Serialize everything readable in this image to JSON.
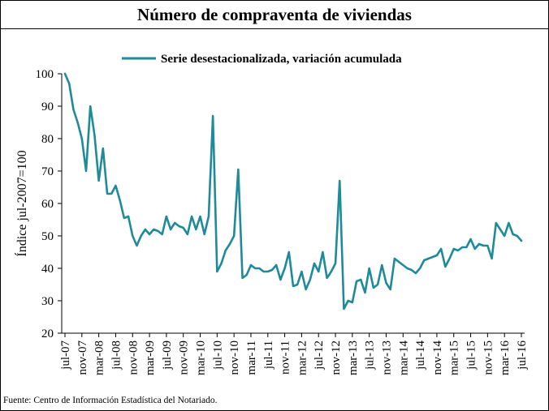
{
  "title": "Número de compraventa de viviendas",
  "source": "Fuente: Centro de Información Estadística del Notariado.",
  "colors": {
    "line": "#1f8a9a",
    "axis": "#000000",
    "text": "#000000"
  },
  "chart_data": {
    "type": "line",
    "title": "Número de compraventa de viviendas",
    "ylabel": "Índice jul-2007=100",
    "xlabel": "",
    "ylim": [
      20,
      100
    ],
    "yticks": [
      20,
      30,
      40,
      50,
      60,
      70,
      80,
      90,
      100
    ],
    "grid": false,
    "legend": "top-center",
    "x_tick_labels": [
      "jul-07",
      "nov-07",
      "mar-08",
      "jul-08",
      "nov-08",
      "mar-09",
      "jul-09",
      "nov-09",
      "mar-10",
      "jul-10",
      "nov-10",
      "mar-11",
      "jul-11",
      "nov-11",
      "mar-12",
      "jul-12",
      "nov-12",
      "mar-13",
      "jul-13",
      "nov-13",
      "mar-14",
      "jul-14",
      "nov-14",
      "mar-15",
      "jul-15",
      "nov-15",
      "mar-16",
      "jul-16"
    ],
    "series": [
      {
        "name": "Serie desestacionalizada, variación acumulada",
        "x": [
          "jul-07",
          "ago-07",
          "sep-07",
          "oct-07",
          "nov-07",
          "dic-07",
          "ene-08",
          "feb-08",
          "mar-08",
          "abr-08",
          "may-08",
          "jun-08",
          "jul-08",
          "ago-08",
          "sep-08",
          "oct-08",
          "nov-08",
          "dic-08",
          "ene-09",
          "feb-09",
          "mar-09",
          "abr-09",
          "may-09",
          "jun-09",
          "jul-09",
          "ago-09",
          "sep-09",
          "oct-09",
          "nov-09",
          "dic-09",
          "ene-10",
          "feb-10",
          "mar-10",
          "abr-10",
          "may-10",
          "jun-10",
          "jul-10",
          "ago-10",
          "sep-10",
          "oct-10",
          "nov-10",
          "dic-10",
          "ene-11",
          "feb-11",
          "mar-11",
          "abr-11",
          "may-11",
          "jun-11",
          "jul-11",
          "ago-11",
          "sep-11",
          "oct-11",
          "nov-11",
          "dic-11",
          "ene-12",
          "feb-12",
          "mar-12",
          "abr-12",
          "may-12",
          "jun-12",
          "jul-12",
          "ago-12",
          "sep-12",
          "oct-12",
          "nov-12",
          "dic-12",
          "ene-13",
          "feb-13",
          "mar-13",
          "abr-13",
          "may-13",
          "jun-13",
          "jul-13",
          "ago-13",
          "sep-13",
          "oct-13",
          "nov-13",
          "dic-13",
          "ene-14",
          "feb-14",
          "mar-14",
          "abr-14",
          "may-14",
          "jun-14",
          "jul-14",
          "ago-14",
          "sep-14",
          "oct-14",
          "nov-14",
          "dic-14",
          "ene-15",
          "feb-15",
          "mar-15",
          "abr-15",
          "may-15",
          "jun-15",
          "jul-15",
          "ago-15",
          "sep-15",
          "oct-15",
          "nov-15",
          "dic-15",
          "ene-16",
          "feb-16",
          "mar-16",
          "abr-16",
          "may-16",
          "jun-16",
          "jul-16"
        ],
        "values": [
          100,
          97,
          89,
          85,
          80,
          70,
          90,
          81,
          67,
          77,
          63,
          63,
          65.5,
          61,
          55.5,
          56,
          50,
          47,
          50,
          52,
          50.5,
          52,
          51.5,
          50.5,
          56,
          52,
          54,
          53,
          52.5,
          50.5,
          56,
          52,
          56,
          50.5,
          56,
          87,
          39,
          41.5,
          45.5,
          47.5,
          50,
          70.5,
          37,
          38,
          41,
          40,
          40,
          39,
          39,
          39.5,
          41,
          36.5,
          40,
          45,
          34.5,
          35,
          39,
          33.5,
          36.5,
          41.5,
          39,
          45,
          37,
          39,
          41.5,
          67,
          27.5,
          30,
          29.5,
          36,
          36.5,
          32.5,
          40,
          34,
          35,
          41,
          35.5,
          33.5,
          43,
          42,
          41,
          40,
          39.5,
          38.5,
          40,
          42.5,
          43,
          43.5,
          44,
          46,
          40.5,
          43,
          46,
          45.5,
          46.5,
          46.5,
          49,
          46,
          47.5,
          47,
          47,
          43,
          54,
          52,
          50,
          54,
          50.5,
          50,
          48.5
        ]
      }
    ]
  }
}
